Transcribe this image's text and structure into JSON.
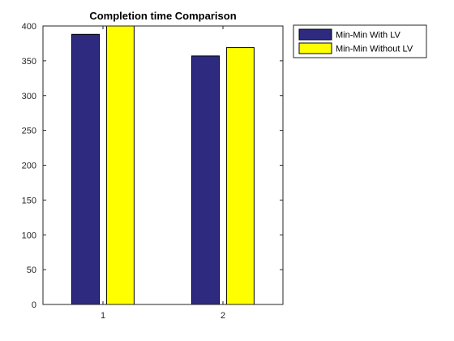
{
  "chart_data": {
    "type": "bar",
    "title": "Completion time Comparison",
    "xlabel": "",
    "ylabel": "",
    "categories": [
      "1",
      "2"
    ],
    "ylim": [
      0,
      400
    ],
    "yticks": [
      0,
      50,
      100,
      150,
      200,
      250,
      300,
      350,
      400
    ],
    "grid": false,
    "legend_position": "outside-top-right",
    "series": [
      {
        "name": "Min-Min With LV",
        "color": "#2e2a7f",
        "values": [
          388,
          357
        ]
      },
      {
        "name": "Min-Min Without LV",
        "color": "#ffff00",
        "values": [
          400,
          369
        ]
      }
    ]
  }
}
